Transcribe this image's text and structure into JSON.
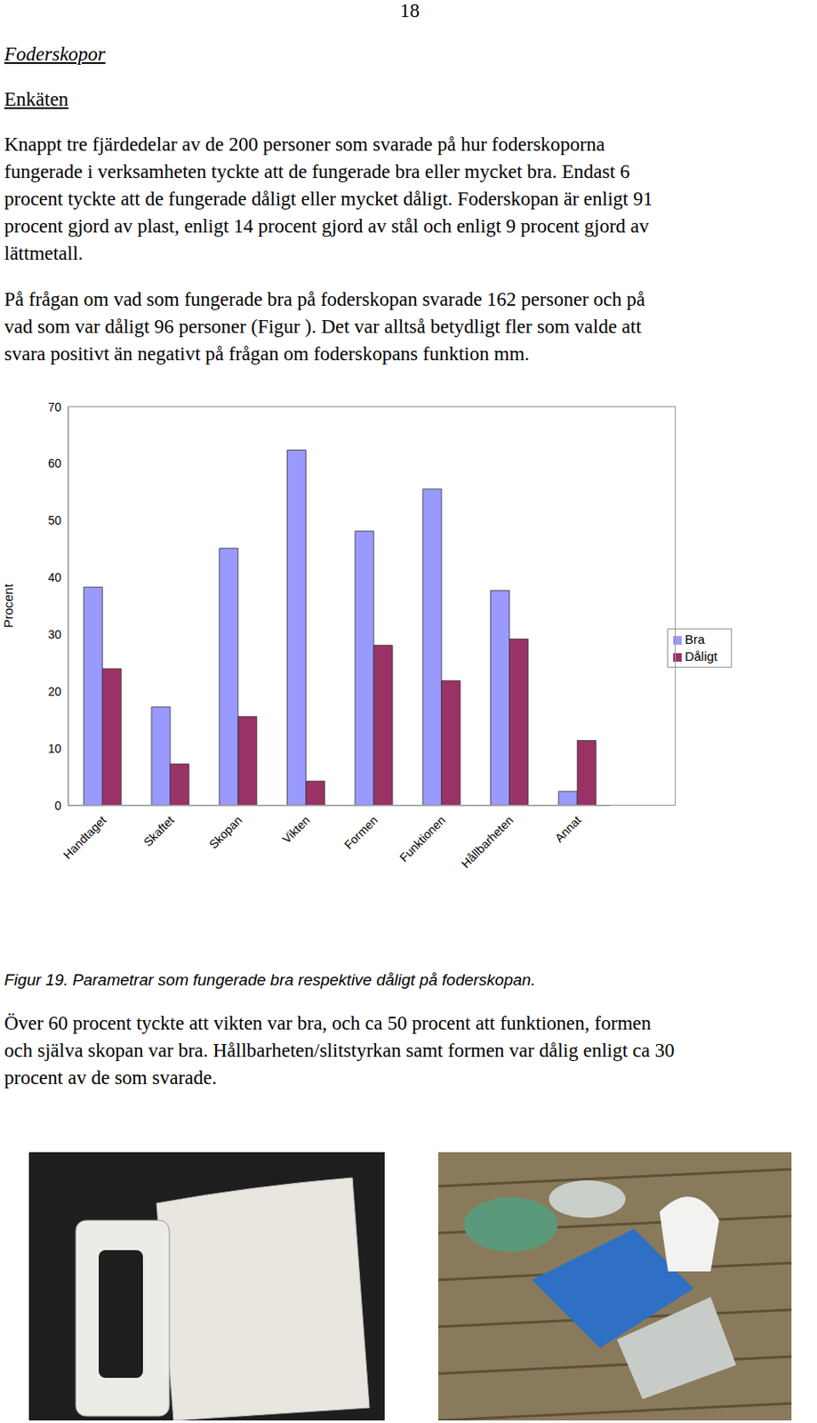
{
  "page_number": "18",
  "heading": "Foderskopor",
  "subheading": "Enkäten",
  "paragraphs": [
    [
      "Knappt tre fjärdedelar av de 200 personer som svarade på hur foderskoporna",
      "fungerade i verksamheten tyckte att de fungerade bra eller mycket bra. Endast 6",
      "procent tyckte att de fungerade dåligt eller mycket dåligt. Foderskopan är enligt 91",
      "procent gjord av plast, enligt 14 procent gjord av stål och enligt 9 procent gjord av",
      "lättmetall."
    ],
    [
      "På frågan om vad som fungerade bra på foderskopan svarade 162 personer och på",
      "vad som var dåligt 96 personer (Figur ). Det var alltså betydligt fler som valde att",
      "svara positivt än negativt på frågan om foderskopans funktion mm."
    ]
  ],
  "chart_data": {
    "type": "bar",
    "categories": [
      "Handtaget",
      "Skaftet",
      "Skopan",
      "Vikten",
      "Formen",
      "Funktionen",
      "Hållbarheten",
      "Annat"
    ],
    "series": [
      {
        "name": "Bra",
        "color": "#9999ff",
        "values": [
          38.3,
          17.3,
          45.1,
          62.3,
          48.1,
          55.5,
          37.7,
          2.5
        ]
      },
      {
        "name": "Dåligt",
        "color": "#993366",
        "values": [
          24.0,
          7.3,
          15.6,
          4.3,
          28.1,
          21.9,
          29.2,
          11.4
        ]
      }
    ],
    "y_label": "Procent",
    "ylim": [
      0,
      70
    ],
    "yticks": [
      0,
      10,
      20,
      30,
      40,
      50,
      60,
      70
    ],
    "grid": false,
    "legend": "right"
  },
  "caption": "Figur 19. Parametrar som fungerade bra respektive dåligt på foderskopan.",
  "closing_paragraph": [
    "Över 60 procent tyckte att vikten var bra, och ca 50 procent att funktionen, formen",
    "och själva skopan var bra. Hållbarheten/slitstyrkan samt formen var dålig enligt ca 30",
    "procent av de som svarade."
  ]
}
